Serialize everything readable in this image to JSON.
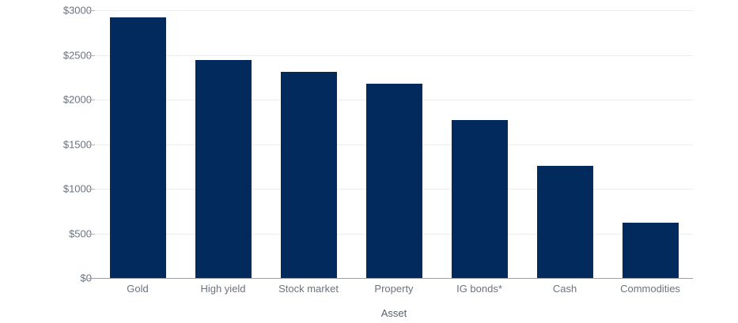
{
  "chart_data": {
    "type": "bar",
    "title": "",
    "xlabel": "Asset",
    "ylabel": "",
    "categories": [
      "Gold",
      "High yield",
      "Stock market",
      "Property",
      "IG bonds*",
      "Cash",
      "Commodities"
    ],
    "values": [
      2920,
      2440,
      2310,
      2180,
      1770,
      1260,
      620
    ],
    "ylim": [
      0,
      3000
    ],
    "y_ticks": [
      {
        "value": 0,
        "label": "$0"
      },
      {
        "value": 500,
        "label": "$500"
      },
      {
        "value": 1000,
        "label": "$1000"
      },
      {
        "value": 1500,
        "label": "$1500"
      },
      {
        "value": 2000,
        "label": "$2000"
      },
      {
        "value": 2500,
        "label": "$2500"
      },
      {
        "value": 3000,
        "label": "$3000"
      }
    ],
    "grid": true,
    "legend": "none",
    "colors": {
      "bar": "#032a5c",
      "gridline": "#ececec",
      "axis_line": "#9a9da1",
      "tick_mark": "#b3b7bc",
      "tick_label": "#6b7280",
      "axis_title": "#575f6b",
      "background": "#ffffff"
    }
  }
}
